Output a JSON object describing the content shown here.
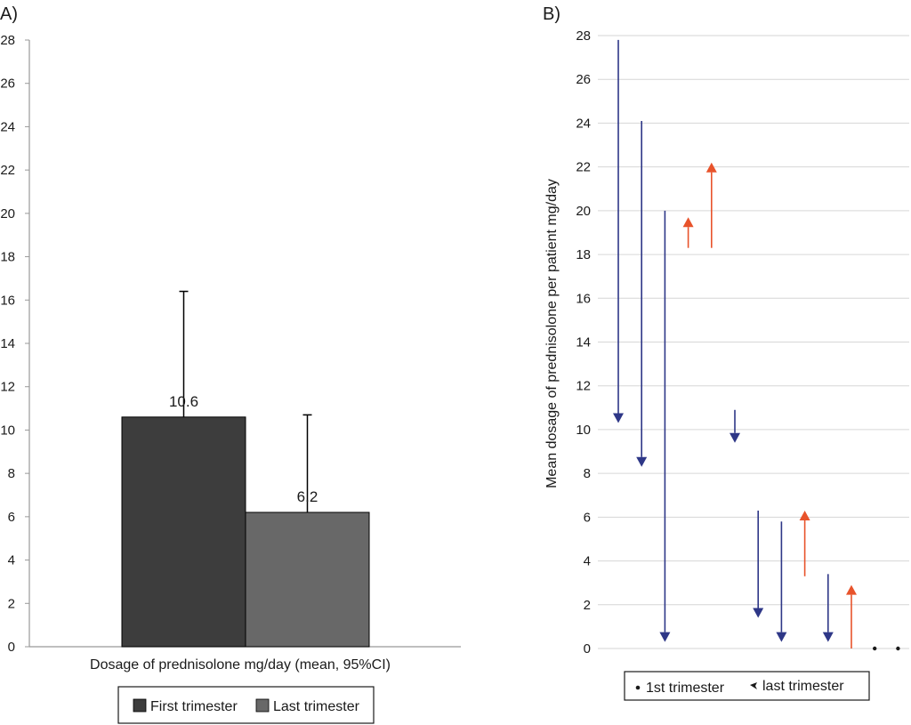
{
  "chart_data": [
    {
      "panel_label": "A)",
      "type": "bar",
      "xlabel": "Dosage of prednisolone mg/day (mean, 95%CI)",
      "ylabel": "",
      "ylim": [
        0,
        28
      ],
      "yticks": [
        "0",
        "2",
        "4",
        "6",
        "8",
        "10",
        "12",
        "14",
        "16",
        "18",
        "20",
        "22",
        "24",
        "26",
        "28"
      ],
      "grid": false,
      "series": [
        {
          "name": "First trimester",
          "value": 10.6,
          "value_label": "10.6",
          "ci_upper": 16.4,
          "color": "#3d3d3d"
        },
        {
          "name": "Last trimester",
          "value": 6.2,
          "value_label": "6.2",
          "ci_upper": 10.7,
          "color": "#686868"
        }
      ],
      "legend": [
        "First trimester",
        "Last trimester"
      ],
      "legend_position": "bottom"
    },
    {
      "panel_label": "B)",
      "type": "arrow",
      "xlabel": "",
      "ylabel": "Mean dosage of prednisolone per patient mg/day",
      "ylim": [
        0,
        28
      ],
      "yticks": [
        "0",
        "2",
        "4",
        "6",
        "8",
        "10",
        "12",
        "14",
        "16",
        "18",
        "20",
        "22",
        "24",
        "26",
        "28"
      ],
      "grid": true,
      "patients": [
        {
          "first": 27.8,
          "last": 10.3,
          "color": "#2e3787"
        },
        {
          "first": 24.1,
          "last": 8.3,
          "color": "#2e3787"
        },
        {
          "first": 20.0,
          "last": 0.3,
          "color": "#2e3787"
        },
        {
          "first": 18.3,
          "last": 19.7,
          "color": "#e8532b"
        },
        {
          "first": 18.3,
          "last": 22.2,
          "color": "#e8532b"
        },
        {
          "first": 10.9,
          "last": 9.4,
          "color": "#2e3787"
        },
        {
          "first": 6.3,
          "last": 1.4,
          "color": "#2e3787"
        },
        {
          "first": 5.8,
          "last": 0.3,
          "color": "#2e3787"
        },
        {
          "first": 3.3,
          "last": 6.3,
          "color": "#e8532b"
        },
        {
          "first": 3.4,
          "last": 0.3,
          "color": "#2e3787"
        },
        {
          "first": 0.0,
          "last": 2.9,
          "color": "#e8532b"
        },
        {
          "first": 0.0,
          "last": 0.0,
          "color": "#1a1a1a"
        },
        {
          "first": 0.0,
          "last": 0.0,
          "color": "#1a1a1a"
        }
      ],
      "legend": [
        "1st trimester",
        "last trimester"
      ],
      "legend_position": "bottom"
    }
  ]
}
